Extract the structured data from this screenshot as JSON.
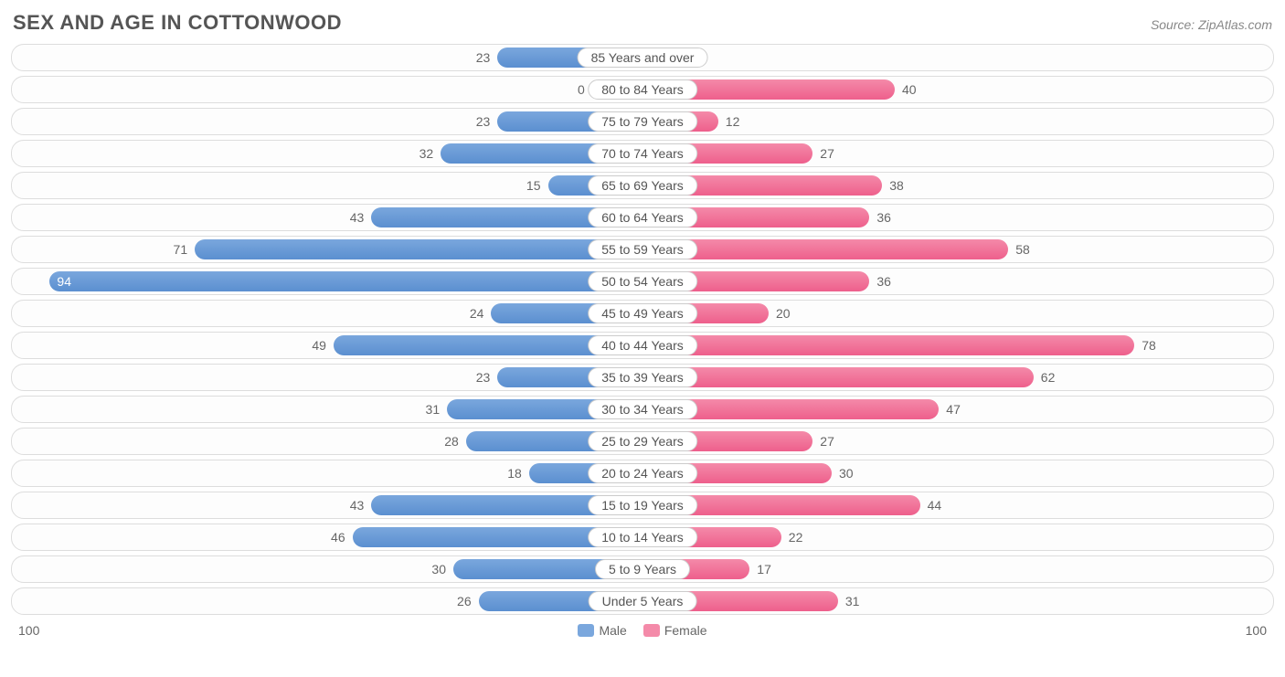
{
  "title": "SEX AND AGE IN COTTONWOOD",
  "source": "Source: ZipAtlas.com",
  "chart": {
    "type": "population-pyramid",
    "max_value": 100,
    "axis_left_label": "100",
    "axis_right_label": "100",
    "male_color": "#7aa7dd",
    "male_color_dark": "#5b8fd0",
    "female_color": "#f48aa9",
    "female_color_dark": "#ee5f8c",
    "row_bg": "#fdfdfd",
    "row_border": "#dddddd",
    "label_bg": "#ffffff",
    "label_border": "#cccccc",
    "text_color": "#666666",
    "title_color": "#555555",
    "inside_threshold": 85,
    "legend": {
      "male": "Male",
      "female": "Female"
    },
    "rows": [
      {
        "label": "85 Years and over",
        "male": 23,
        "female": 0
      },
      {
        "label": "80 to 84 Years",
        "male": 0,
        "female": 40
      },
      {
        "label": "75 to 79 Years",
        "male": 23,
        "female": 12
      },
      {
        "label": "70 to 74 Years",
        "male": 32,
        "female": 27
      },
      {
        "label": "65 to 69 Years",
        "male": 15,
        "female": 38
      },
      {
        "label": "60 to 64 Years",
        "male": 43,
        "female": 36
      },
      {
        "label": "55 to 59 Years",
        "male": 71,
        "female": 58
      },
      {
        "label": "50 to 54 Years",
        "male": 94,
        "female": 36
      },
      {
        "label": "45 to 49 Years",
        "male": 24,
        "female": 20
      },
      {
        "label": "40 to 44 Years",
        "male": 49,
        "female": 78
      },
      {
        "label": "35 to 39 Years",
        "male": 23,
        "female": 62
      },
      {
        "label": "30 to 34 Years",
        "male": 31,
        "female": 47
      },
      {
        "label": "25 to 29 Years",
        "male": 28,
        "female": 27
      },
      {
        "label": "20 to 24 Years",
        "male": 18,
        "female": 30
      },
      {
        "label": "15 to 19 Years",
        "male": 43,
        "female": 44
      },
      {
        "label": "10 to 14 Years",
        "male": 46,
        "female": 22
      },
      {
        "label": "5 to 9 Years",
        "male": 30,
        "female": 17
      },
      {
        "label": "Under 5 Years",
        "male": 26,
        "female": 31
      }
    ]
  }
}
